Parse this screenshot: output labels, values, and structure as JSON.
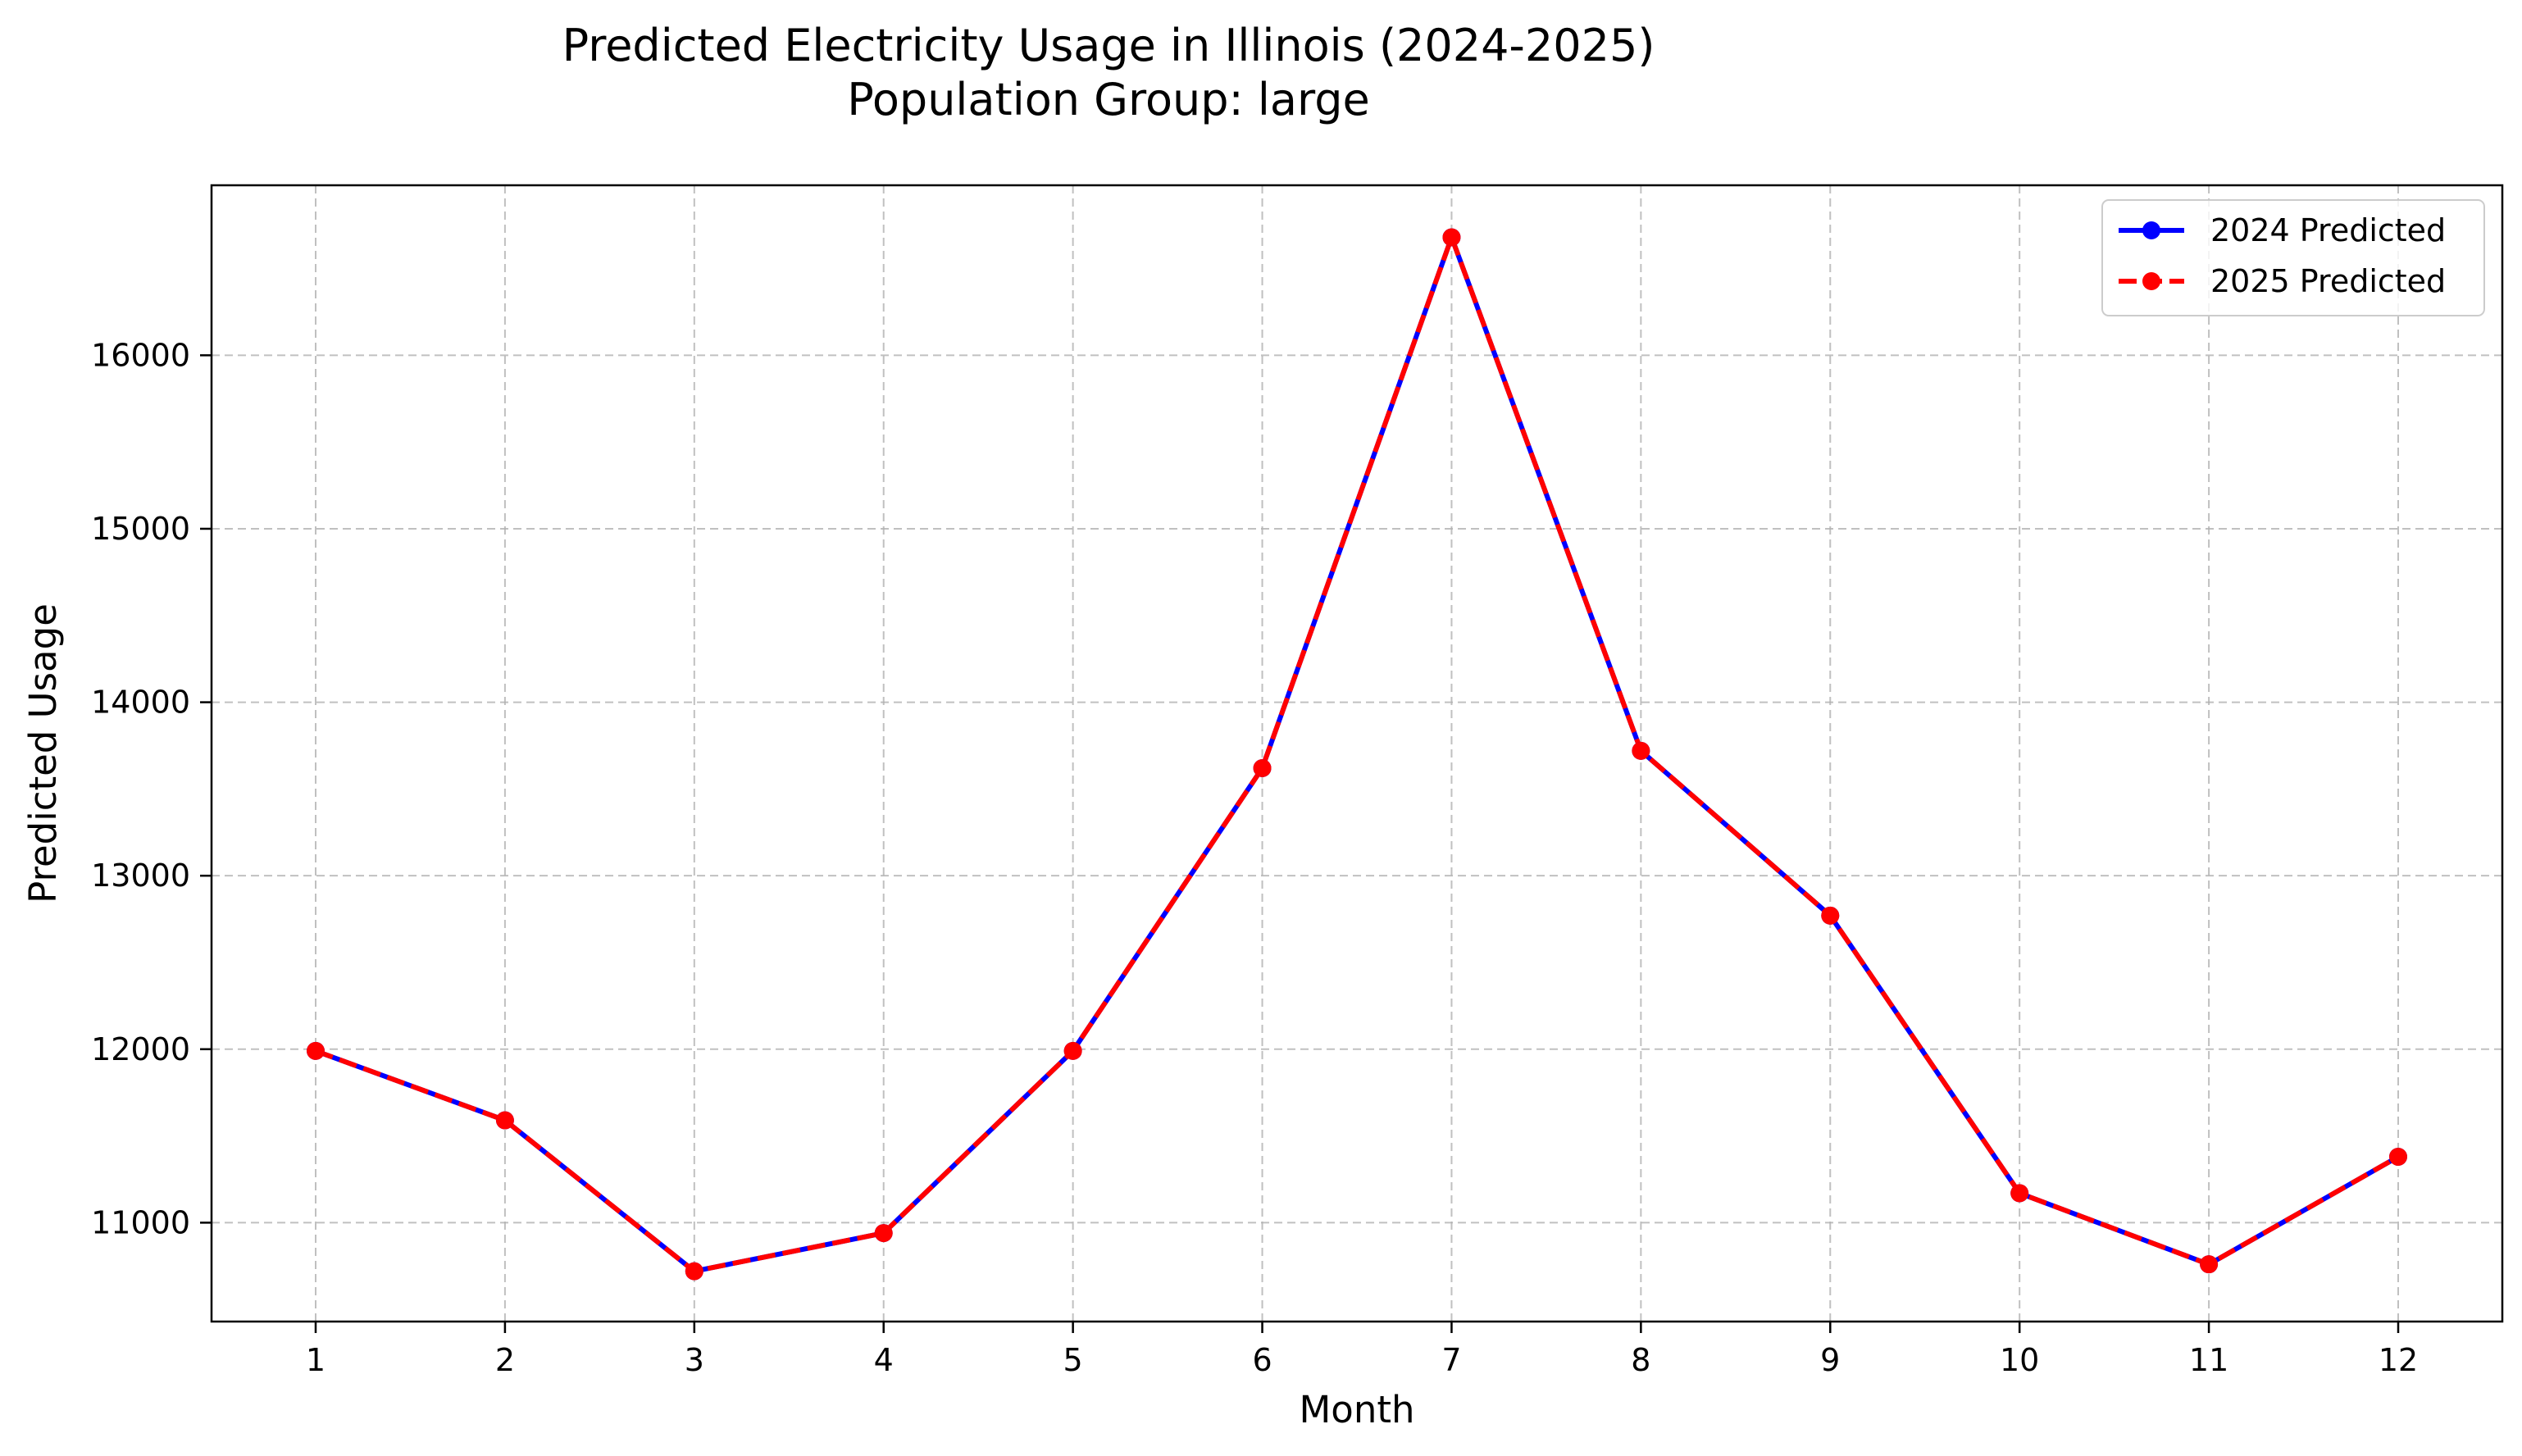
{
  "chart_data": {
    "type": "line",
    "title": "Predicted Electricity Usage in Illinois (2024-2025)",
    "subtitle": "Population Group: large",
    "xlabel": "Month",
    "ylabel": "Predicted Usage",
    "x": [
      1,
      2,
      3,
      4,
      5,
      6,
      7,
      8,
      9,
      10,
      11,
      12
    ],
    "x_tick_labels": [
      "1",
      "2",
      "3",
      "4",
      "5",
      "6",
      "7",
      "8",
      "9",
      "10",
      "11",
      "12"
    ],
    "xlim": [
      0.45,
      12.55
    ],
    "ylim": [
      10430,
      16980
    ],
    "y_ticks": [
      11000,
      12000,
      13000,
      14000,
      15000,
      16000
    ],
    "y_tick_labels": [
      "11000",
      "12000",
      "13000",
      "14000",
      "15000",
      "16000"
    ],
    "grid": true,
    "legend_position": "top-right",
    "series": [
      {
        "name": "2024 Predicted",
        "color": "#0000ff",
        "line_style": "solid",
        "marker": "circle",
        "values": [
          11990,
          11590,
          10720,
          10940,
          11990,
          13620,
          16680,
          13720,
          12770,
          11170,
          10760,
          11380
        ]
      },
      {
        "name": "2025 Predicted",
        "color": "#ff0000",
        "line_style": "dashed",
        "marker": "circle",
        "values": [
          11990,
          11590,
          10720,
          10940,
          11990,
          13620,
          16680,
          13720,
          12770,
          11170,
          10760,
          11380
        ]
      }
    ]
  }
}
